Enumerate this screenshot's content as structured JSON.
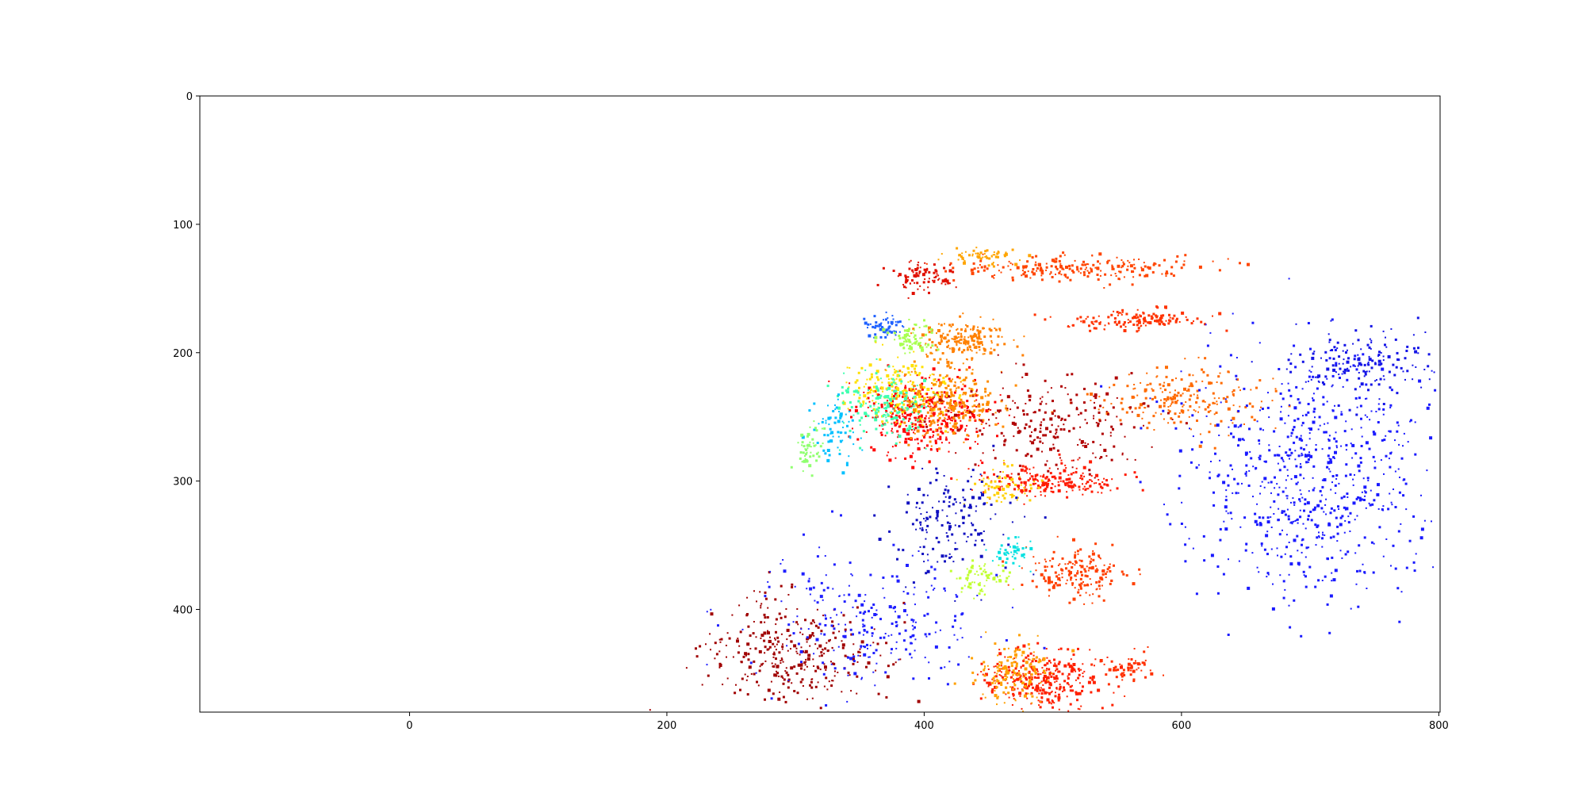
{
  "chart_data": {
    "type": "scatter",
    "title": "",
    "xlabel": "",
    "ylabel": "",
    "xlim": [
      -163,
      801
    ],
    "ylim": [
      480,
      0
    ],
    "y_inverted": true,
    "grid": false,
    "legend": "none",
    "x_ticks": [
      0,
      200,
      400,
      600,
      800
    ],
    "y_ticks": [
      0,
      100,
      200,
      300,
      400
    ],
    "x_tick_labels": [
      "0",
      "200",
      "400",
      "600",
      "800"
    ],
    "y_tick_labels": [
      "0",
      "100",
      "200",
      "300",
      "400"
    ],
    "colormap": "jet",
    "point_color_scale": "jet colormap, dark blue to dark red",
    "clusters": [
      {
        "x_center": 520,
        "y_center": 135,
        "x_spread": 95,
        "y_spread": 10,
        "color": "#ff4500",
        "count": 220
      },
      {
        "x_center": 450,
        "y_center": 125,
        "x_spread": 25,
        "y_spread": 6,
        "color": "#ffa500",
        "count": 60
      },
      {
        "x_center": 400,
        "y_center": 140,
        "x_spread": 25,
        "y_spread": 10,
        "color": "#e01000",
        "count": 90
      },
      {
        "x_center": 430,
        "y_center": 190,
        "x_spread": 30,
        "y_spread": 15,
        "color": "#ff8000",
        "count": 180
      },
      {
        "x_center": 560,
        "y_center": 175,
        "x_spread": 60,
        "y_spread": 8,
        "color": "#ff3300",
        "count": 140
      },
      {
        "x_center": 370,
        "y_center": 180,
        "x_spread": 15,
        "y_spread": 10,
        "color": "#1e60ff",
        "count": 60
      },
      {
        "x_center": 390,
        "y_center": 190,
        "x_spread": 20,
        "y_spread": 12,
        "color": "#a8ff50",
        "count": 80
      },
      {
        "x_center": 400,
        "y_center": 250,
        "x_spread": 50,
        "y_spread": 30,
        "color": "#ff0000",
        "count": 380
      },
      {
        "x_center": 380,
        "y_center": 230,
        "x_spread": 40,
        "y_spread": 25,
        "color": "#ffe000",
        "count": 200
      },
      {
        "x_center": 370,
        "y_center": 240,
        "x_spread": 35,
        "y_spread": 25,
        "color": "#40ffb0",
        "count": 160
      },
      {
        "x_center": 420,
        "y_center": 240,
        "x_spread": 45,
        "y_spread": 30,
        "color": "#ff8c00",
        "count": 260
      },
      {
        "x_center": 330,
        "y_center": 260,
        "x_spread": 15,
        "y_spread": 25,
        "color": "#00c0ff",
        "count": 70
      },
      {
        "x_center": 310,
        "y_center": 275,
        "x_spread": 12,
        "y_spread": 18,
        "color": "#90ff70",
        "count": 50
      },
      {
        "x_center": 600,
        "y_center": 235,
        "x_spread": 70,
        "y_spread": 25,
        "color": "#ff6a00",
        "count": 220
      },
      {
        "x_center": 500,
        "y_center": 255,
        "x_spread": 70,
        "y_spread": 35,
        "color": "#b00000",
        "count": 240
      },
      {
        "x_center": 500,
        "y_center": 300,
        "x_spread": 50,
        "y_spread": 12,
        "color": "#ff1a00",
        "count": 200
      },
      {
        "x_center": 460,
        "y_center": 305,
        "x_spread": 25,
        "y_spread": 15,
        "color": "#ffd000",
        "count": 70
      },
      {
        "x_center": 700,
        "y_center": 300,
        "x_spread": 90,
        "y_spread": 100,
        "color": "#1a1aff",
        "count": 700
      },
      {
        "x_center": 740,
        "y_center": 210,
        "x_spread": 55,
        "y_spread": 25,
        "color": "#1414e6",
        "count": 160
      },
      {
        "x_center": 520,
        "y_center": 370,
        "x_spread": 40,
        "y_spread": 20,
        "color": "#ff4000",
        "count": 180
      },
      {
        "x_center": 445,
        "y_center": 375,
        "x_spread": 20,
        "y_spread": 12,
        "color": "#c0ff30",
        "count": 70
      },
      {
        "x_center": 470,
        "y_center": 355,
        "x_spread": 15,
        "y_spread": 12,
        "color": "#00e0e0",
        "count": 40
      },
      {
        "x_center": 300,
        "y_center": 435,
        "x_spread": 70,
        "y_spread": 40,
        "color": "#a00000",
        "count": 340
      },
      {
        "x_center": 360,
        "y_center": 410,
        "x_spread": 90,
        "y_spread": 55,
        "color": "#2020ff",
        "count": 260
      },
      {
        "x_center": 490,
        "y_center": 455,
        "x_spread": 45,
        "y_spread": 25,
        "color": "#ff2000",
        "count": 320
      },
      {
        "x_center": 470,
        "y_center": 450,
        "x_spread": 30,
        "y_spread": 25,
        "color": "#ffa000",
        "count": 150
      },
      {
        "x_center": 560,
        "y_center": 445,
        "x_spread": 20,
        "y_spread": 12,
        "color": "#ff3000",
        "count": 60
      },
      {
        "x_center": 420,
        "y_center": 330,
        "x_spread": 45,
        "y_spread": 40,
        "color": "#1010c0",
        "count": 160
      }
    ]
  }
}
